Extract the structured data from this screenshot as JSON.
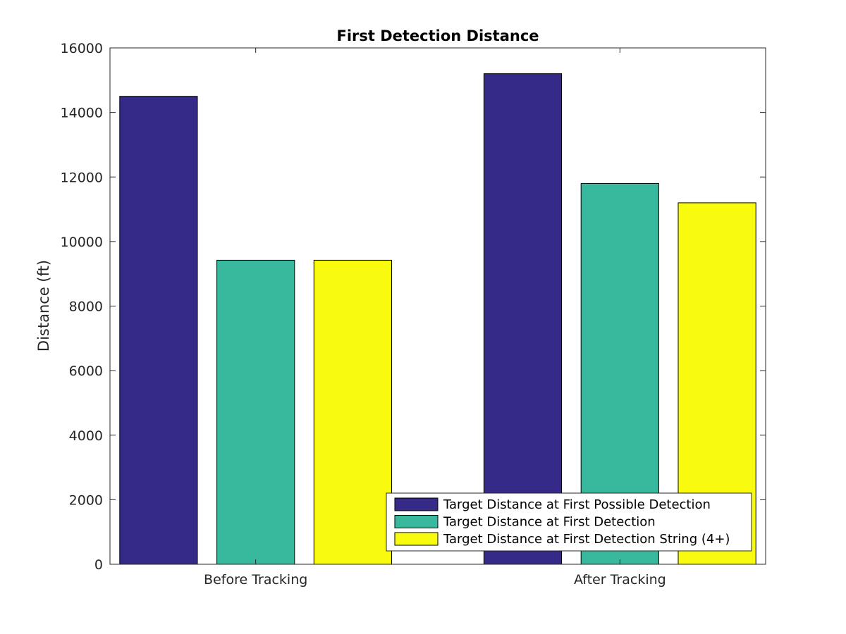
{
  "chart_data": {
    "type": "bar",
    "title": "First Detection Distance",
    "xlabel": "",
    "ylabel": "Distance (ft)",
    "categories": [
      "Before Tracking",
      "After Tracking"
    ],
    "series": [
      {
        "name": "Target Distance at First Possible Detection",
        "values": [
          14500,
          15200
        ],
        "color": "#352a87"
      },
      {
        "name": "Target Distance at First Detection",
        "values": [
          9420,
          11800
        ],
        "color": "#38b99e"
      },
      {
        "name": "Target Distance at First Detection String (4+)",
        "values": [
          9420,
          11200
        ],
        "color": "#f9fb0e"
      }
    ],
    "ylim": [
      0,
      16000
    ],
    "yticks": [
      0,
      2000,
      4000,
      6000,
      8000,
      10000,
      12000,
      14000,
      16000
    ],
    "grid": false,
    "legend_position": "bottom-right"
  }
}
